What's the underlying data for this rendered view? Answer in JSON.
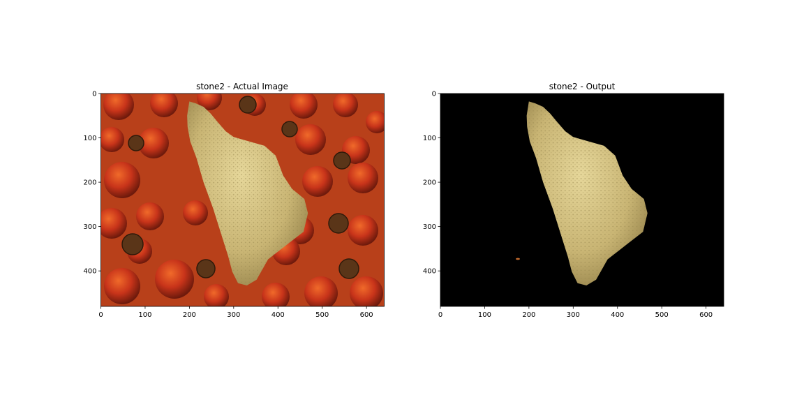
{
  "chart_data": [
    {
      "type": "image",
      "title": "stone2 - Actual Image",
      "image_width": 640,
      "image_height": 480,
      "xlim": [
        0,
        640
      ],
      "ylim": [
        480,
        0
      ],
      "xticks": [
        0,
        100,
        200,
        300,
        400,
        500,
        600
      ],
      "yticks": [
        0,
        100,
        200,
        300,
        400
      ],
      "background": "#b8401a",
      "stone_color": "#c8b676"
    },
    {
      "type": "image",
      "title": "stone2 - Output",
      "image_width": 640,
      "image_height": 480,
      "xlim": [
        0,
        640
      ],
      "ylim": [
        480,
        0
      ],
      "xticks": [
        0,
        100,
        200,
        300,
        400,
        500,
        600
      ],
      "yticks": [
        0,
        100,
        200,
        300,
        400
      ],
      "background": "#000000",
      "stone_color": "#c8b676"
    }
  ]
}
